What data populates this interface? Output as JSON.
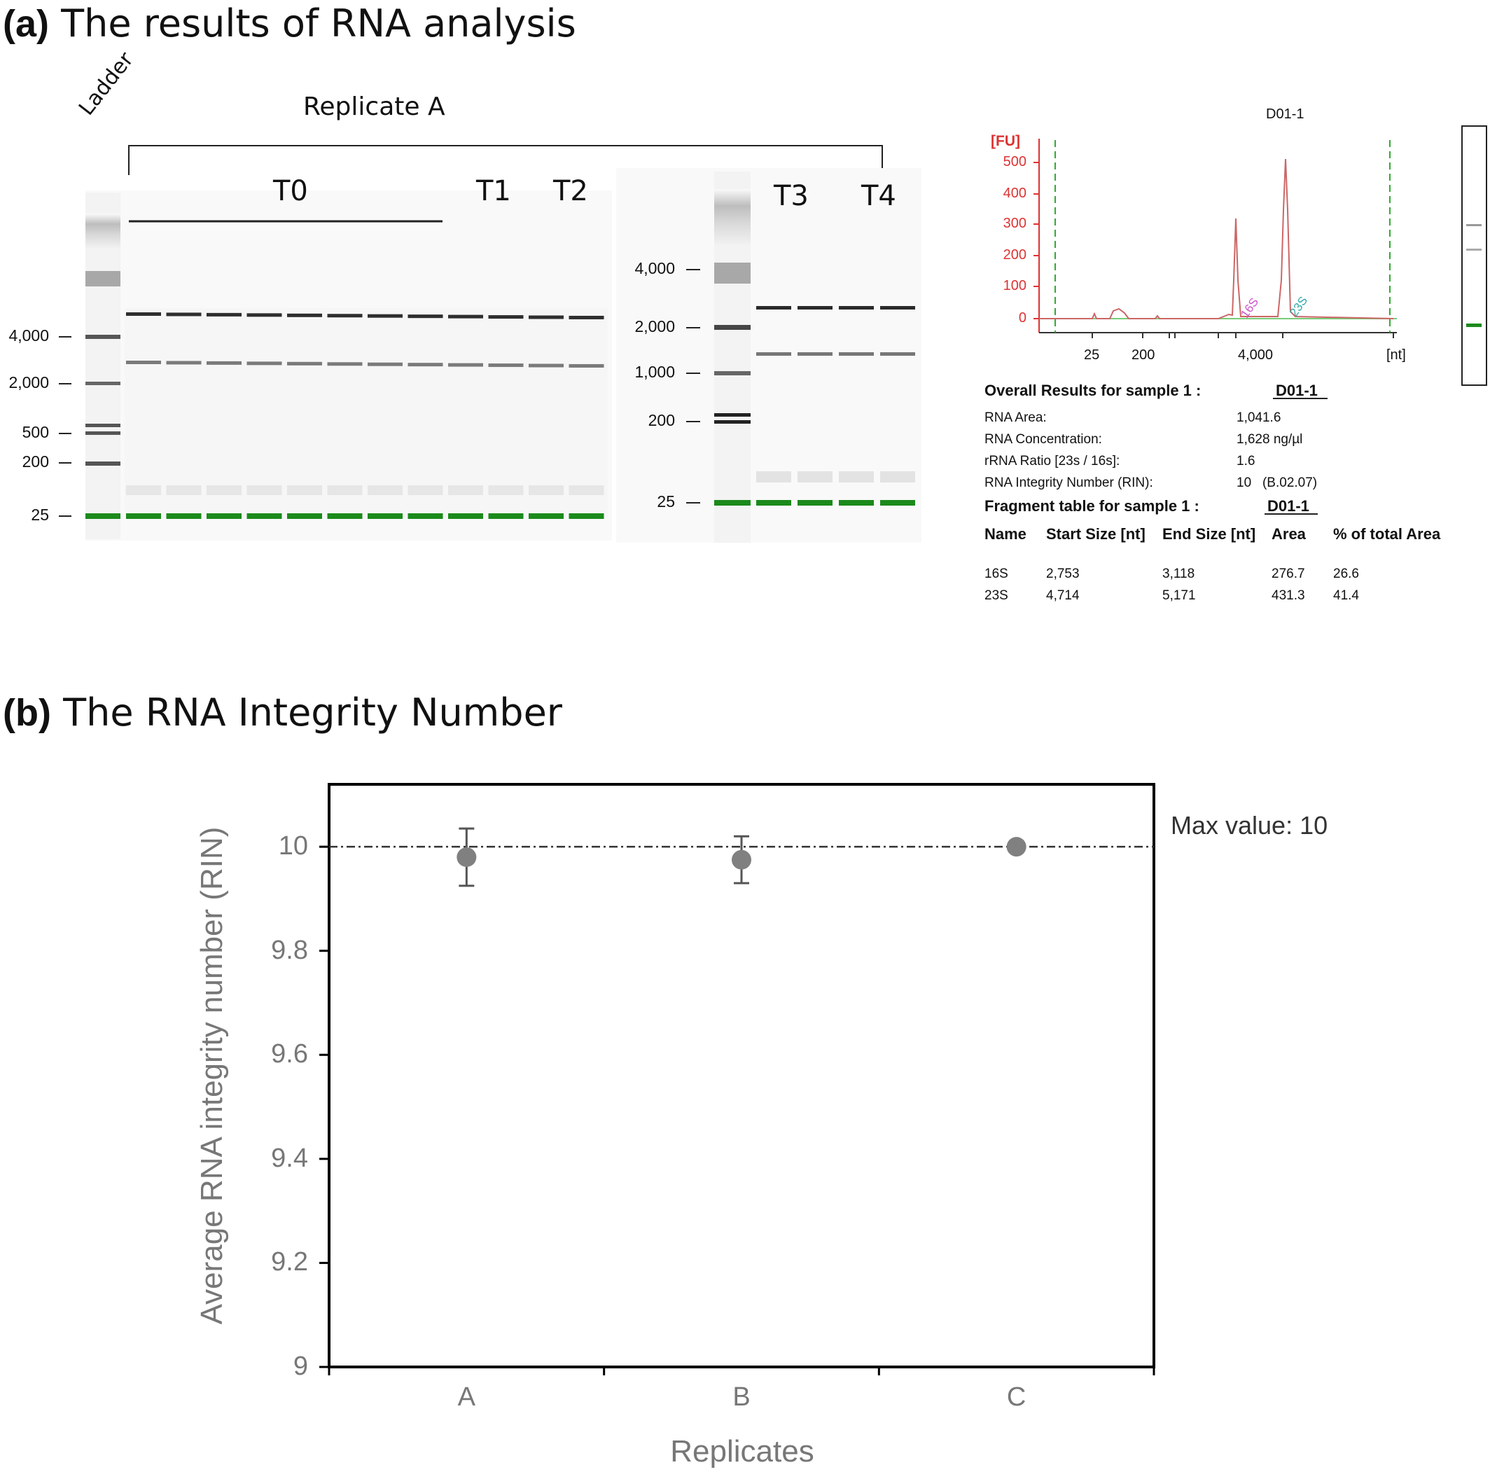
{
  "panel_a": {
    "tag": "(a)",
    "title": "The results of RNA analysis",
    "gel1": {
      "ladder_label": "Ladder",
      "replicate_label": "Replicate A",
      "time_labels": [
        "T0",
        "T1",
        "T2"
      ],
      "ladder_ticks": [
        "4,000",
        "2,000",
        "500",
        "200",
        "25"
      ]
    },
    "gel2": {
      "time_labels": [
        "T3",
        "T4"
      ],
      "ladder_ticks": [
        "4,000",
        "2,000",
        "1,000",
        "200",
        "25"
      ]
    },
    "electropherogram": {
      "sample_title": "D01-1",
      "y_unit": "[FU]",
      "y_ticks": [
        "500",
        "400",
        "300",
        "200",
        "100",
        "0"
      ],
      "x_ticks": [
        "25",
        "200",
        "4,000"
      ],
      "x_unit": "[nt]",
      "peak_labels": [
        "16S",
        "23S"
      ]
    },
    "overall_results": {
      "heading": "Overall Results for sample 1 :",
      "sample": "D01-1",
      "rows": [
        {
          "label": "RNA Area:",
          "value": "1,041.6"
        },
        {
          "label": "RNA Concentration:",
          "value": "1,628 ng/µl"
        },
        {
          "label": "rRNA Ratio [23s / 16s]:",
          "value": "1.6"
        },
        {
          "label": "RNA Integrity Number (RIN):",
          "value": "10   (B.02.07)"
        }
      ]
    },
    "fragment_table": {
      "heading": "Fragment table for sample 1 :",
      "sample": "D01-1",
      "columns": [
        "Name",
        "Start Size [nt]",
        "End Size [nt]",
        "Area",
        "% of total Area"
      ],
      "rows": [
        [
          "16S",
          "2,753",
          "3,118",
          "276.7",
          "26.6"
        ],
        [
          "23S",
          "4,714",
          "5,171",
          "431.3",
          "41.4"
        ]
      ]
    }
  },
  "panel_b": {
    "tag": "(b)",
    "title": "The RNA Integrity Number",
    "max_label": "Max value: 10"
  },
  "chart_data": {
    "type": "scatter",
    "title": "",
    "xlabel": "Replicates",
    "ylabel": "Average RNA integrity number (RIN)",
    "categories": [
      "A",
      "B",
      "C"
    ],
    "values": [
      9.98,
      9.975,
      10.0
    ],
    "error": [
      0.055,
      0.045,
      0.0
    ],
    "ylim": [
      9,
      10.1
    ],
    "yticks": [
      "9",
      "9.2",
      "9.4",
      "9.6",
      "9.8",
      "10"
    ],
    "reference_line": {
      "value": 10,
      "label": "Max value: 10",
      "style": "dash-dot"
    },
    "marker_color": "#808080",
    "grid": false,
    "legend": "none"
  }
}
